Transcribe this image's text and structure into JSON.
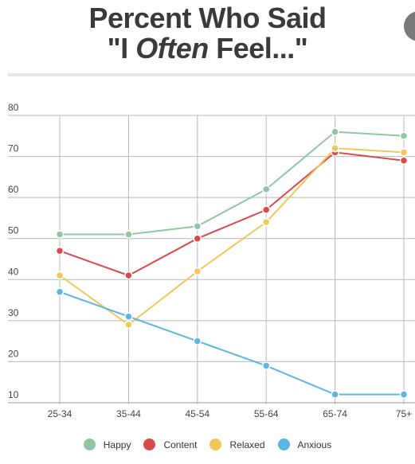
{
  "title": {
    "line1": "Percent Who Said",
    "line2_pre": "\"I ",
    "line2_em": "Often",
    "line2_post": " Feel...\""
  },
  "chart_data": {
    "type": "line",
    "categories": [
      "25-34",
      "35-44",
      "45-54",
      "55-64",
      "65-74",
      "75+"
    ],
    "y_ticks": [
      10,
      20,
      30,
      40,
      50,
      60,
      70,
      80
    ],
    "ylim": [
      10,
      80
    ],
    "grid": true,
    "legend_position": "bottom",
    "series": [
      {
        "name": "Happy",
        "color": "#8ec7a2",
        "values": [
          51,
          51,
          53,
          62,
          76,
          75
        ]
      },
      {
        "name": "Content",
        "color": "#d94b4b",
        "values": [
          47,
          41,
          50,
          57,
          71,
          69
        ]
      },
      {
        "name": "Relaxed",
        "color": "#f0c85a",
        "values": [
          41,
          29,
          42,
          54,
          72,
          71
        ]
      },
      {
        "name": "Anxious",
        "color": "#5bb6e3",
        "values": [
          37,
          31,
          25,
          19,
          12,
          12
        ]
      }
    ]
  }
}
